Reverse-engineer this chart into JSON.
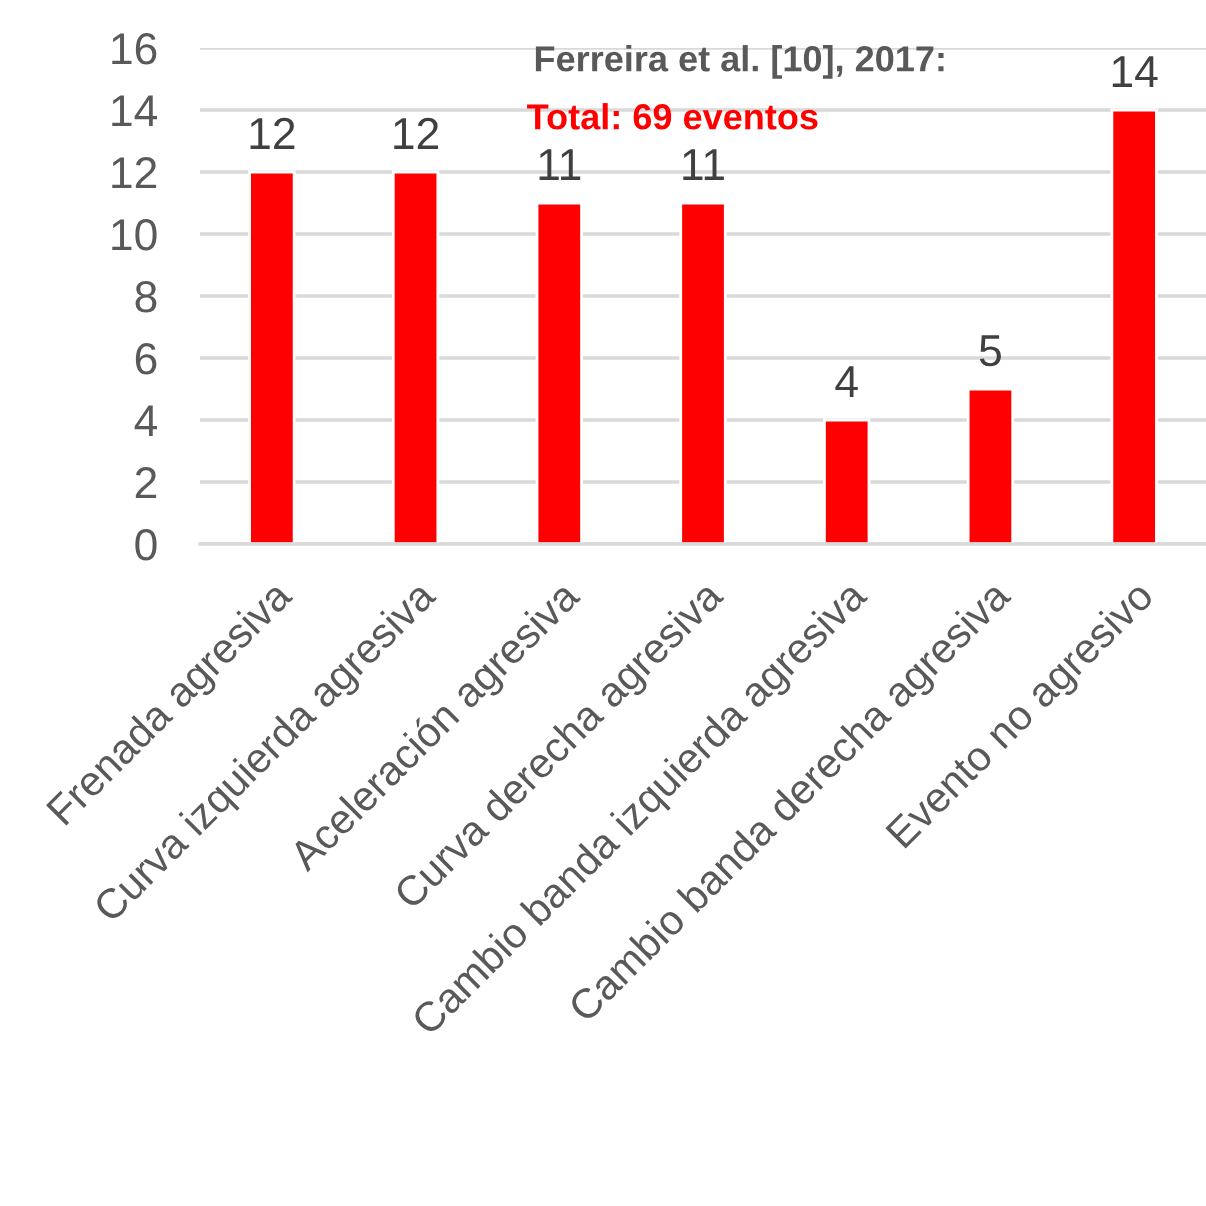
{
  "chart_data": {
    "type": "bar",
    "title": "Ferreira et al. [10], 2017:",
    "subtitle": "Total: 69 eventos",
    "categories": [
      "Frenada agresiva",
      "Curva izquierda agresiva",
      "Aceleración agresiva",
      "Curva derecha agresiva",
      "Cambio banda izquierda agresiva",
      "Cambio banda derecha agresiva",
      "Evento no agresivo"
    ],
    "values": [
      12,
      12,
      11,
      11,
      4,
      5,
      14
    ],
    "color": "#ff0000",
    "ylim": [
      0,
      16
    ],
    "yticks": [
      0,
      2,
      4,
      6,
      8,
      10,
      12,
      14,
      16
    ],
    "grid": "y",
    "data_labels": true
  }
}
